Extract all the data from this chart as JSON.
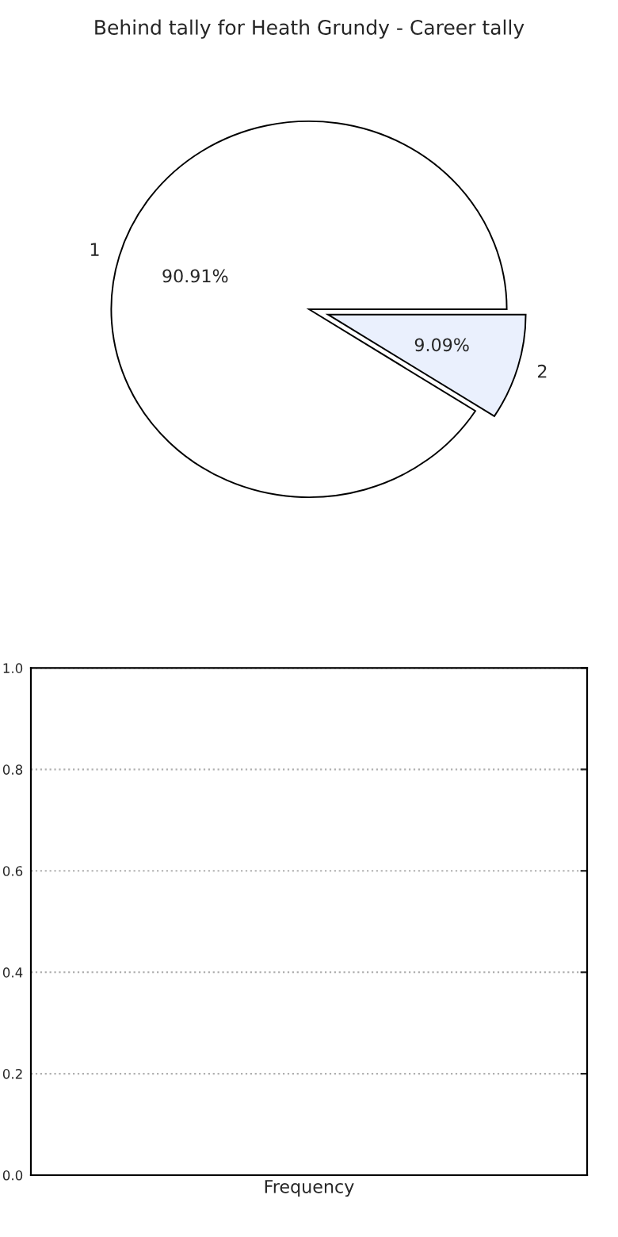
{
  "chart_data": [
    {
      "type": "pie",
      "title": "Behind tally for Heath Grundy - Career tally",
      "categories": [
        "1",
        "2"
      ],
      "values": [
        90.91,
        9.09
      ],
      "colors": [
        "#ffffff",
        "#eaf0fd"
      ],
      "value_labels": [
        "90.91%",
        "9.09%"
      ]
    },
    {
      "type": "bar",
      "categories": [
        null
      ],
      "values": [
        0
      ],
      "xlabel": "Frequency",
      "ylim": [
        0,
        1
      ],
      "yticks": [
        {
          "value": 0,
          "label": "0.0"
        },
        {
          "value": 0.2,
          "label": "0.2"
        },
        {
          "value": 0.4,
          "label": "0.4"
        },
        {
          "value": 0.6,
          "label": "0.6"
        },
        {
          "value": 0.8,
          "label": "0.8"
        },
        {
          "value": 1,
          "label": "1.0"
        }
      ],
      "grid": "y",
      "line_style": "dotted"
    }
  ]
}
